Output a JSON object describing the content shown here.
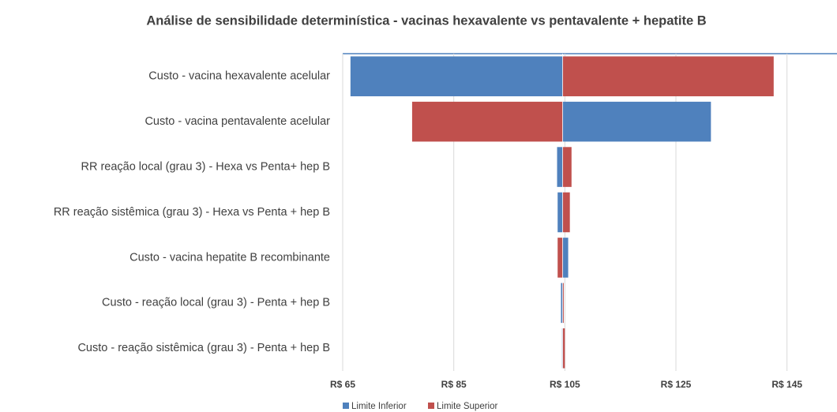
{
  "chart_data": {
    "type": "tornado",
    "title": "Análise de sensibilidade determinística - vacinas hexavalente vs pentavalente + hepatite B",
    "categories": [
      "Custo - vacina hexavalente acelular",
      "Custo - vacina pentavalente acelular",
      "RR reação local (grau 3) - Hexa vs Penta+ hep B",
      "RR reação sistêmica (grau 3) - Hexa vs Penta + hep B",
      "Custo - vacina hepatite B recombinante",
      "Custo - reação local (grau 3) - Penta + hep B",
      "Custo - reação sistêmica (grau 3) - Penta + hep B"
    ],
    "base": 104.6,
    "series": [
      {
        "name": "Limite Inferior",
        "color": "#4f81bd",
        "values": [
          66.4,
          131.3,
          103.6,
          103.7,
          105.6,
          104.3,
          104.5
        ]
      },
      {
        "name": "Limite Superior",
        "color": "#c0504d",
        "values": [
          142.6,
          77.5,
          106.2,
          105.9,
          103.7,
          104.8,
          105.0
        ]
      }
    ],
    "xlim": [
      65,
      154
    ],
    "xticks": [
      {
        "value": 65,
        "label": "R$ 65"
      },
      {
        "value": 85,
        "label": "R$ 85"
      },
      {
        "value": 105,
        "label": "R$ 105"
      },
      {
        "value": 125,
        "label": "R$ 125"
      },
      {
        "value": 145,
        "label": "R$ 145"
      }
    ],
    "grid": true,
    "legend": "bottom"
  }
}
